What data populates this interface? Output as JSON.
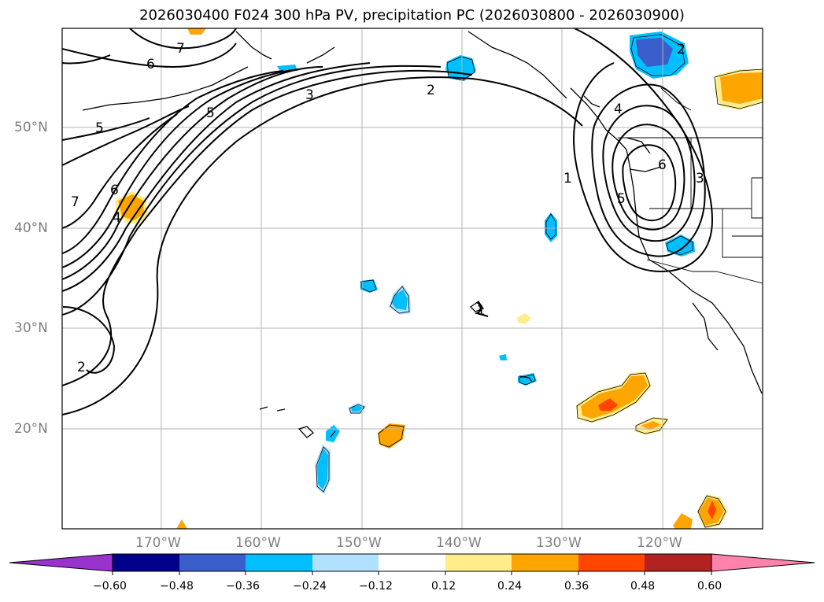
{
  "title": "2026030400 F024 300 hPa PV, precipitation PC (2026030800 - 2026030900)",
  "lat_labels": [
    "50°N",
    "40°N",
    "30°N",
    "20°N"
  ],
  "lon_labels": [
    "170°W",
    "160°W",
    "150°W",
    "140°W",
    "130°W",
    "120°W"
  ],
  "contour_labels": [
    "7",
    "6",
    "5",
    "5",
    "3",
    "2",
    "1",
    "4",
    "6",
    "3",
    "5",
    "2",
    "6",
    "4",
    "7",
    "2",
    "1"
  ],
  "colorbar": {
    "ticks": [
      "−0.60",
      "−0.48",
      "−0.36",
      "−0.24",
      "−0.12",
      "0.12",
      "0.24",
      "0.36",
      "0.48",
      "0.60"
    ],
    "colors": [
      "#9a32cd",
      "#00008b",
      "#3a5fcd",
      "#00bfff",
      "#b0e2ff",
      "#ffffff",
      "#ffec8b",
      "#ffa500",
      "#ff4500",
      "#b22222",
      "#ff82ab"
    ]
  }
}
